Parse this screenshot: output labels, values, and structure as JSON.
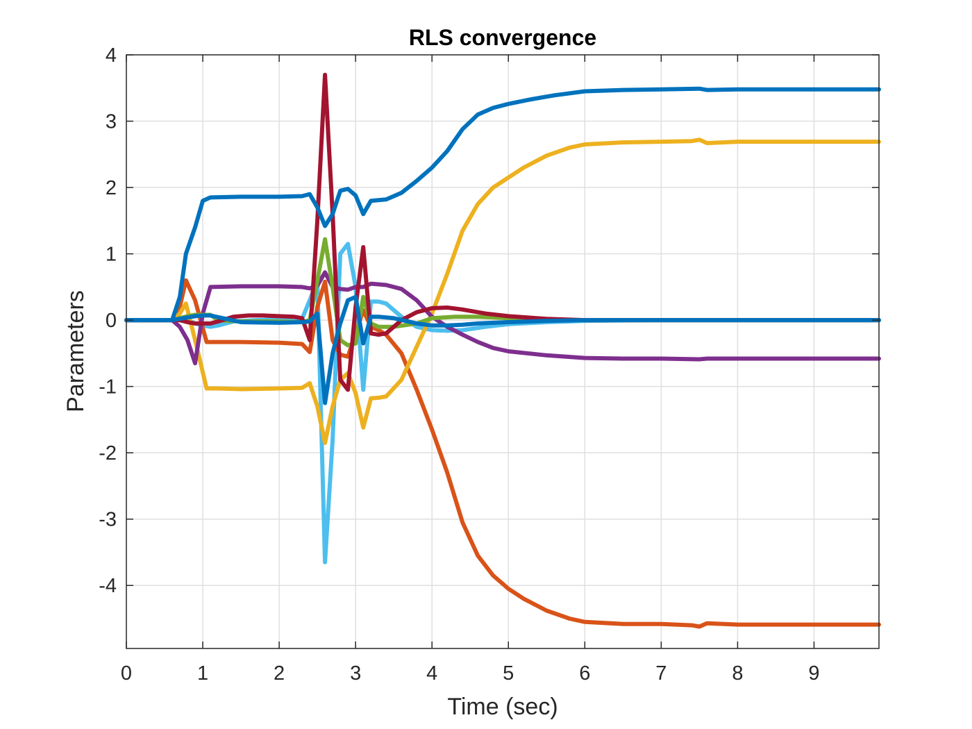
{
  "chart_data": {
    "type": "line",
    "title": "RLS convergence",
    "xlabel": "Time (sec)",
    "ylabel": "Parameters",
    "xlim": [
      0,
      9.85
    ],
    "ylim": [
      -4.95,
      4
    ],
    "xticks": [
      0,
      1,
      2,
      3,
      4,
      5,
      6,
      7,
      8,
      9
    ],
    "xtick_labels": [
      "0",
      "1",
      "2",
      "3",
      "4",
      "5",
      "6",
      "7",
      "8",
      "9"
    ],
    "yticks": [
      4,
      3,
      2,
      1,
      0,
      -1,
      -2,
      -3,
      -4
    ],
    "ytick_labels": [
      "4",
      "3",
      "2",
      "1",
      "0",
      "-1",
      "-2",
      "-3",
      "-4"
    ],
    "grid": true,
    "series": [
      {
        "color": "#4DBEEE",
        "x": [
          0,
          0.6,
          0.7,
          0.8,
          0.9,
          1.0,
          1.1,
          1.2,
          1.4,
          1.7,
          2.0,
          2.3,
          2.4,
          2.5,
          2.6,
          2.7,
          2.8,
          2.9,
          3.0,
          3.1,
          3.2,
          3.3,
          3.4,
          3.6,
          3.8,
          4.0,
          4.2,
          4.4,
          4.7,
          5.0,
          5.5,
          6.0,
          7.0,
          7.5,
          7.6,
          8.0,
          9.85
        ],
        "y": [
          0,
          0,
          0.02,
          0.0,
          -0.05,
          -0.08,
          -0.1,
          -0.08,
          -0.02,
          0,
          0.01,
          0.02,
          0.3,
          0.6,
          -3.65,
          -1.8,
          1.0,
          1.15,
          0.5,
          -1.05,
          0.28,
          0.28,
          0.25,
          0.05,
          -0.1,
          -0.15,
          -0.16,
          -0.15,
          -0.1,
          -0.06,
          -0.03,
          -0.01,
          0,
          0,
          0,
          0,
          0
        ]
      },
      {
        "color": "#D95319",
        "x": [
          0,
          0.6,
          0.7,
          0.78,
          0.9,
          1.05,
          1.2,
          1.5,
          2.0,
          2.3,
          2.4,
          2.5,
          2.6,
          2.7,
          2.8,
          2.9,
          3.0,
          3.1,
          3.2,
          3.3,
          3.4,
          3.6,
          3.8,
          4.0,
          4.2,
          4.4,
          4.6,
          4.8,
          5.0,
          5.2,
          5.5,
          5.8,
          6.0,
          6.5,
          7.0,
          7.4,
          7.5,
          7.6,
          8.0,
          9.85
        ],
        "y": [
          0,
          0,
          0.2,
          0.6,
          0.3,
          -0.33,
          -0.33,
          -0.33,
          -0.34,
          -0.36,
          -0.48,
          0.2,
          0.58,
          -0.3,
          -0.52,
          -0.55,
          -0.2,
          0.15,
          -0.1,
          -0.15,
          -0.22,
          -0.5,
          -1.05,
          -1.65,
          -2.3,
          -3.05,
          -3.55,
          -3.85,
          -4.05,
          -4.2,
          -4.38,
          -4.5,
          -4.55,
          -4.58,
          -4.58,
          -4.6,
          -4.62,
          -4.57,
          -4.59,
          -4.59
        ]
      },
      {
        "color": "#EDB120",
        "x": [
          0,
          0.6,
          0.7,
          0.78,
          0.9,
          1.05,
          1.2,
          1.5,
          2.0,
          2.3,
          2.4,
          2.5,
          2.6,
          2.7,
          2.8,
          2.9,
          3.0,
          3.1,
          3.2,
          3.3,
          3.4,
          3.6,
          3.8,
          4.0,
          4.2,
          4.4,
          4.6,
          4.8,
          5.0,
          5.2,
          5.5,
          5.8,
          6.0,
          6.5,
          7.0,
          7.4,
          7.5,
          7.6,
          8.0,
          9.85
        ],
        "y": [
          0,
          0,
          0.1,
          0.25,
          -0.3,
          -1.03,
          -1.03,
          -1.04,
          -1.03,
          -1.02,
          -0.95,
          -1.3,
          -1.85,
          -1.3,
          -0.9,
          -0.8,
          -1.1,
          -1.62,
          -1.18,
          -1.17,
          -1.15,
          -0.9,
          -0.4,
          0.1,
          0.7,
          1.35,
          1.75,
          2.0,
          2.15,
          2.3,
          2.48,
          2.6,
          2.65,
          2.68,
          2.69,
          2.7,
          2.72,
          2.67,
          2.69,
          2.69
        ]
      },
      {
        "color": "#7E2F8E",
        "x": [
          0,
          0.6,
          0.7,
          0.8,
          0.9,
          1.0,
          1.1,
          1.5,
          2.0,
          2.3,
          2.4,
          2.5,
          2.6,
          2.7,
          2.8,
          2.9,
          3.0,
          3.1,
          3.2,
          3.3,
          3.4,
          3.6,
          3.8,
          4.0,
          4.2,
          4.4,
          4.6,
          4.8,
          5.0,
          5.5,
          6.0,
          6.5,
          7.0,
          7.5,
          7.6,
          8.0,
          9.85
        ],
        "y": [
          0,
          0,
          -0.1,
          -0.3,
          -0.65,
          0.1,
          0.5,
          0.51,
          0.51,
          0.5,
          0.48,
          0.52,
          0.72,
          0.5,
          0.47,
          0.46,
          0.5,
          0.5,
          0.55,
          0.54,
          0.53,
          0.47,
          0.3,
          0.05,
          -0.1,
          -0.22,
          -0.33,
          -0.42,
          -0.47,
          -0.53,
          -0.57,
          -0.58,
          -0.58,
          -0.59,
          -0.58,
          -0.58,
          -0.58
        ]
      },
      {
        "color": "#77AC30",
        "x": [
          0,
          0.6,
          0.7,
          0.8,
          0.9,
          1.0,
          1.1,
          1.2,
          1.5,
          2.0,
          2.3,
          2.4,
          2.5,
          2.6,
          2.7,
          2.8,
          2.9,
          3.0,
          3.1,
          3.2,
          3.3,
          3.5,
          3.8,
          4.0,
          4.3,
          4.6,
          5.0,
          5.5,
          6.0,
          7.0,
          8.0,
          9.85
        ],
        "y": [
          0,
          0,
          0.03,
          0.06,
          0.08,
          0.08,
          0.08,
          0.0,
          -0.02,
          -0.02,
          -0.03,
          0.0,
          0.6,
          1.22,
          0.5,
          -0.3,
          -0.38,
          -0.35,
          0.35,
          -0.05,
          -0.1,
          -0.1,
          -0.05,
          0.03,
          0.05,
          0.05,
          0.03,
          0.01,
          0,
          0,
          0,
          0
        ]
      },
      {
        "color": "#A2142F",
        "x": [
          0,
          0.6,
          0.7,
          0.8,
          0.9,
          1.0,
          1.1,
          1.2,
          1.4,
          1.6,
          1.8,
          2.0,
          2.2,
          2.3,
          2.4,
          2.5,
          2.6,
          2.7,
          2.8,
          2.9,
          3.0,
          3.1,
          3.2,
          3.3,
          3.4,
          3.6,
          3.8,
          4.0,
          4.2,
          4.4,
          4.7,
          5.0,
          5.5,
          6.0,
          7.0,
          8.0,
          9.85
        ],
        "y": [
          0,
          0,
          0,
          -0.03,
          -0.05,
          -0.05,
          -0.05,
          -0.02,
          0.05,
          0.07,
          0.07,
          0.06,
          0.05,
          0.03,
          -0.3,
          1.5,
          3.7,
          1.6,
          -0.9,
          -1.05,
          0.2,
          1.1,
          -0.2,
          -0.22,
          -0.2,
          0.0,
          0.12,
          0.18,
          0.19,
          0.16,
          0.1,
          0.06,
          0.02,
          0.0,
          0,
          0,
          0
        ]
      },
      {
        "color": "#0072BD",
        "x": [
          0,
          0.6,
          0.7,
          0.8,
          0.9,
          1.0,
          1.1,
          1.3,
          1.5,
          2.0,
          2.3,
          2.4,
          2.5,
          2.6,
          2.7,
          2.8,
          2.9,
          3.0,
          3.1,
          3.2,
          3.3,
          3.5,
          3.8,
          4.0,
          4.2,
          4.4,
          4.6,
          5.0,
          5.5,
          6.0,
          7.0,
          7.5,
          7.6,
          8.0,
          9.85
        ],
        "y": [
          0,
          0,
          0.02,
          0.04,
          0.06,
          0.07,
          0.07,
          0.02,
          -0.03,
          -0.04,
          -0.03,
          -0.02,
          0.1,
          -1.25,
          -0.5,
          -0.05,
          0.3,
          0.35,
          -0.35,
          0.05,
          0.05,
          0.03,
          -0.05,
          -0.08,
          -0.08,
          -0.07,
          -0.05,
          -0.03,
          -0.01,
          0,
          0,
          0,
          0,
          0,
          0
        ]
      },
      {
        "color": "#0072BD",
        "x": [
          0,
          0.6,
          0.7,
          0.78,
          0.9,
          1.0,
          1.1,
          1.5,
          2.0,
          2.3,
          2.4,
          2.5,
          2.6,
          2.7,
          2.8,
          2.9,
          3.0,
          3.1,
          3.2,
          3.4,
          3.6,
          3.8,
          4.0,
          4.2,
          4.4,
          4.6,
          4.8,
          5.0,
          5.3,
          5.6,
          6.0,
          6.5,
          7.0,
          7.5,
          7.6,
          8.0,
          9.85
        ],
        "y": [
          0,
          0,
          0.35,
          1.0,
          1.4,
          1.8,
          1.85,
          1.86,
          1.86,
          1.87,
          1.9,
          1.7,
          1.42,
          1.6,
          1.95,
          1.98,
          1.88,
          1.6,
          1.8,
          1.82,
          1.92,
          2.1,
          2.3,
          2.55,
          2.88,
          3.1,
          3.2,
          3.26,
          3.33,
          3.39,
          3.45,
          3.47,
          3.48,
          3.49,
          3.47,
          3.48,
          3.48
        ]
      }
    ]
  }
}
